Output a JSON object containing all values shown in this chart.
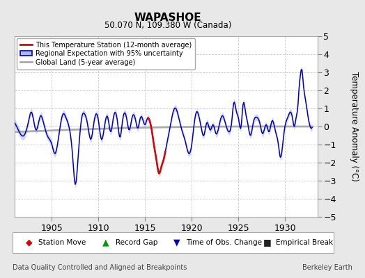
{
  "title": "WAPASHOE",
  "subtitle": "50.070 N, 109.380 W (Canada)",
  "ylabel": "Temperature Anomaly (°C)",
  "xlim": [
    1901.0,
    1933.5
  ],
  "ylim": [
    -5,
    5
  ],
  "yticks": [
    -5,
    -4,
    -3,
    -2,
    -1,
    0,
    1,
    2,
    3,
    4,
    5
  ],
  "xticks": [
    1905,
    1910,
    1915,
    1920,
    1925,
    1930
  ],
  "background_color": "#e8e8e8",
  "plot_bg_color": "#ffffff",
  "blue_line_color": "#0000bb",
  "blue_fill_color": "#b0b8e8",
  "red_line_color": "#dd0000",
  "gray_line_color": "#aaaaaa",
  "grid_color": "#cccccc",
  "footer_left": "Data Quality Controlled and Aligned at Breakpoints",
  "footer_right": "Berkeley Earth",
  "legend_items": [
    "This Temperature Station (12-month average)",
    "Regional Expectation with 95% uncertainty",
    "Global Land (5-year average)"
  ]
}
